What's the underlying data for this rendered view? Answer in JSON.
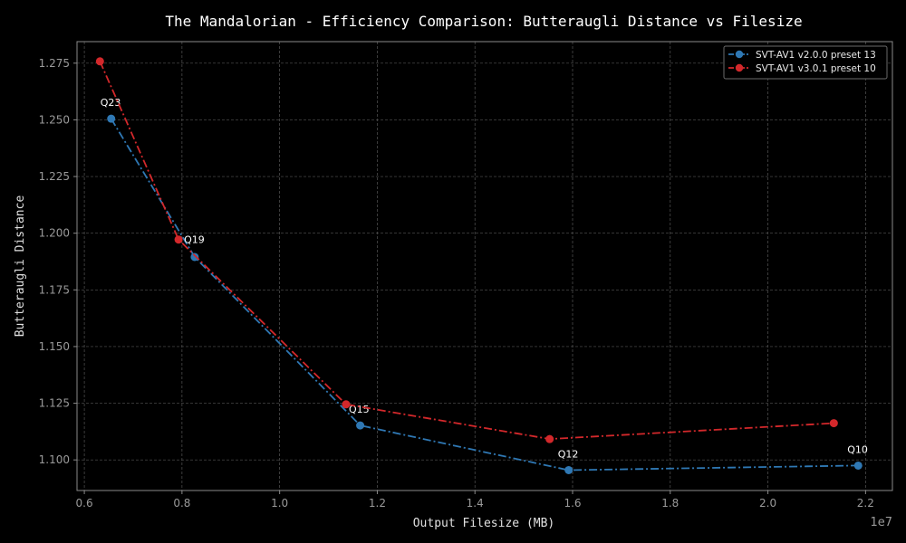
{
  "chart_data": {
    "type": "line",
    "title": "The Mandalorian - Efficiency Comparison: Butteraugli Distance vs Filesize",
    "xlabel": "Output Filesize (MB)",
    "ylabel": "Butteraugli Distance",
    "x_offset_label": "1e7",
    "xlim": [
      0.585,
      2.255
    ],
    "ylim": [
      1.0865,
      1.2845
    ],
    "xticks": [
      0.6,
      0.8,
      1.0,
      1.2,
      1.4,
      1.6,
      1.8,
      2.0,
      2.2
    ],
    "xtick_labels": [
      "0.6",
      "0.8",
      "1.0",
      "1.2",
      "1.4",
      "1.6",
      "1.8",
      "2.0",
      "2.2"
    ],
    "yticks": [
      1.1,
      1.125,
      1.15,
      1.175,
      1.2,
      1.225,
      1.25,
      1.275
    ],
    "ytick_labels": [
      "1.100",
      "1.125",
      "1.150",
      "1.175",
      "1.200",
      "1.225",
      "1.250",
      "1.275"
    ],
    "grid": true,
    "legend_position": "top-right",
    "series": [
      {
        "name": "SVT-AV1 v2.0.0 preset 13",
        "color": "#2f78b4",
        "points": [
          {
            "x": 0.655,
            "y": 1.2505,
            "label": "Q23"
          },
          {
            "x": 0.826,
            "y": 1.1895,
            "label": "Q19"
          },
          {
            "x": 1.165,
            "y": 1.1152,
            "label": "Q15"
          },
          {
            "x": 1.592,
            "y": 1.0955,
            "label": "Q12"
          },
          {
            "x": 2.185,
            "y": 1.0975,
            "label": "Q10"
          }
        ]
      },
      {
        "name": "SVT-AV1 v3.0.1 preset 10",
        "color": "#d3282b",
        "points": [
          {
            "x": 0.632,
            "y": 1.2758
          },
          {
            "x": 0.793,
            "y": 1.1972
          },
          {
            "x": 1.136,
            "y": 1.1245
          },
          {
            "x": 1.553,
            "y": 1.1092
          },
          {
            "x": 2.135,
            "y": 1.1162
          }
        ]
      }
    ]
  }
}
